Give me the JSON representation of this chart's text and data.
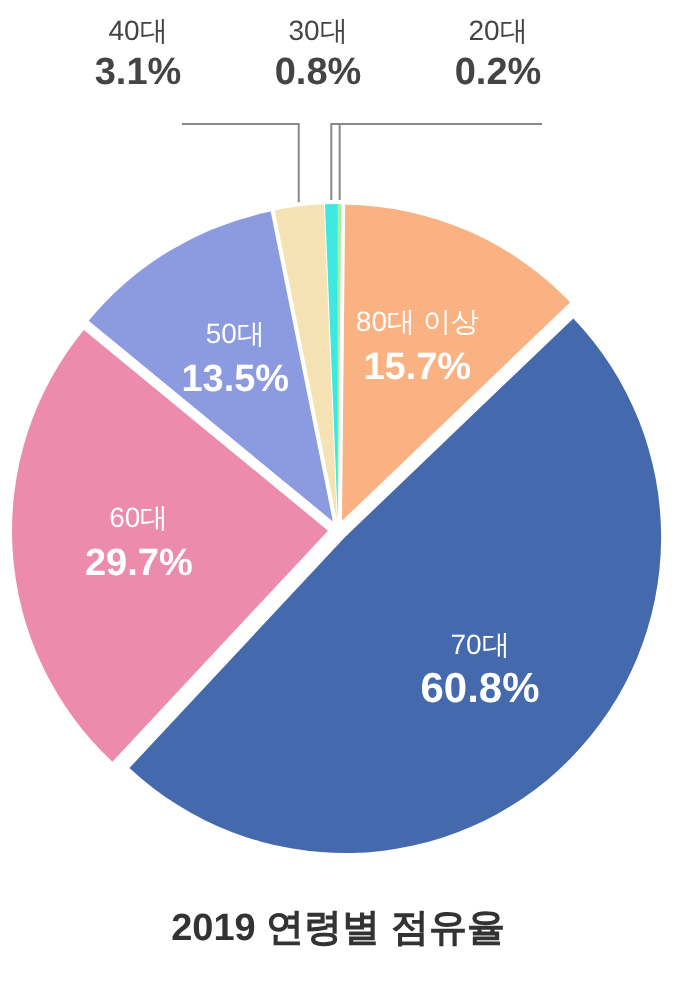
{
  "chart_data": {
    "type": "pie",
    "title": "2019 연령별 점유율",
    "categories": [
      "20대",
      "80대 이상",
      "70대",
      "60대",
      "50대",
      "40대",
      "30대"
    ],
    "values": [
      0.2,
      15.7,
      60.8,
      29.7,
      13.5,
      3.1,
      0.8
    ],
    "colors": [
      "#a6efa0",
      "#fbb283",
      "#4569ad",
      "#ec8bab",
      "#8c9be0",
      "#f5e3b5",
      "#3de8e0"
    ],
    "value_labels": [
      "0.2%",
      "15.7%",
      "60.8%",
      "29.7%",
      "13.5%",
      "3.1%",
      "0.8%"
    ]
  }
}
